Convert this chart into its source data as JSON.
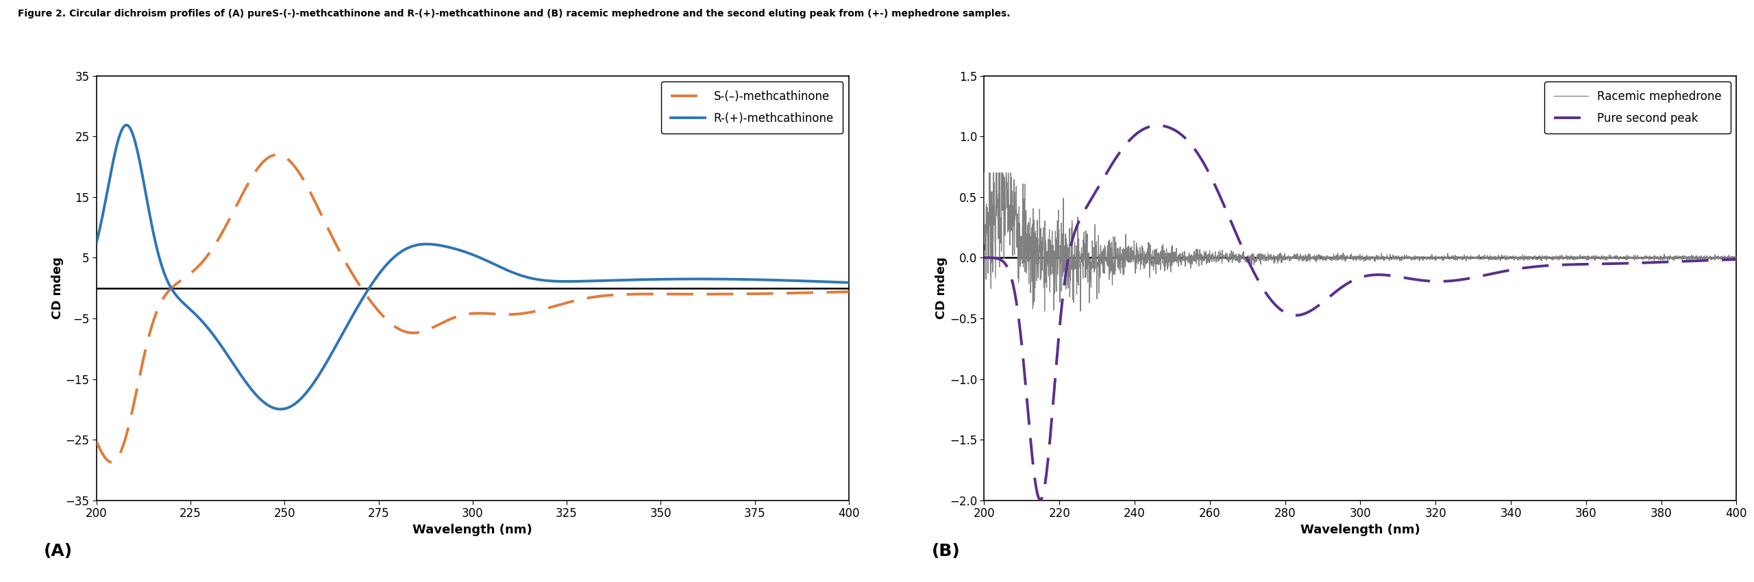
{
  "title": "Figure 2. Circular dichroism profiles of (A) pureS-(-)-methcathinone and R-(+)-methcathinone and (B) racemic mephedrone and the second eluting peak from (+-) mephedrone samples.",
  "panel_A": {
    "ylabel": "CD mdeg",
    "xlabel": "Wavelength (nm)",
    "label_A": "(A)",
    "xlim": [
      200,
      400
    ],
    "ylim": [
      -35,
      35
    ],
    "xticks": [
      200,
      225,
      250,
      275,
      300,
      325,
      350,
      375,
      400
    ],
    "yticks": [
      -35,
      -25,
      -15,
      -5,
      5,
      15,
      25,
      35
    ],
    "line1_label": "R-(+)-methcathinone",
    "line1_color": "#2E75B6",
    "line2_label": "S-(–)-methcathinone",
    "line2_color": "#E07B39",
    "line2_style": "dashed"
  },
  "panel_B": {
    "ylabel": "CD mdeg",
    "xlabel": "Wavelength (nm)",
    "label_B": "(B)",
    "xlim": [
      200,
      400
    ],
    "ylim": [
      -2.0,
      1.5
    ],
    "xticks": [
      200,
      220,
      240,
      260,
      280,
      300,
      320,
      340,
      360,
      380,
      400
    ],
    "yticks": [
      -2.0,
      -1.5,
      -1.0,
      -0.5,
      0.0,
      0.5,
      1.0,
      1.5
    ],
    "line1_label": "Pure second peak",
    "line1_color": "#5B2D8E",
    "line1_style": "dashed",
    "line2_label": "Racemic mephedrone",
    "line2_color": "#808080"
  },
  "background_color": "#ffffff",
  "title_fontsize": 10,
  "axis_label_fontsize": 13,
  "tick_fontsize": 12,
  "legend_fontsize": 12,
  "panel_label_fontsize": 18
}
